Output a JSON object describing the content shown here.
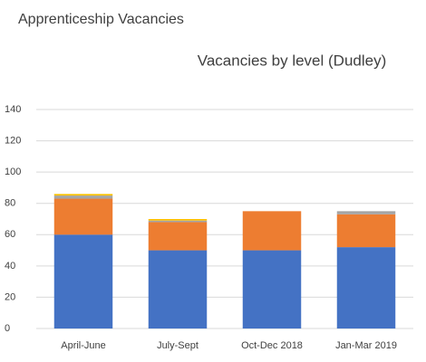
{
  "header": {
    "title": "Apprenticeship Vacancies"
  },
  "chart_data": {
    "type": "bar",
    "stacked": true,
    "title": "Vacancies by level (Dudley)",
    "categories": [
      "April-June",
      "July-Sept",
      "Oct-Dec 2018",
      "Jan-Mar 2019"
    ],
    "series": [
      {
        "color": "#4472c4",
        "values": [
          60,
          50,
          50,
          52
        ]
      },
      {
        "color": "#ed7d31",
        "values": [
          23,
          18,
          25,
          21
        ]
      },
      {
        "color": "#a5a5a5",
        "values": [
          2,
          1,
          0,
          2
        ]
      },
      {
        "color": "#ffc000",
        "values": [
          1,
          1,
          0,
          0
        ]
      }
    ],
    "ylim": [
      0,
      140
    ],
    "yticks": [
      0,
      20,
      40,
      60,
      80,
      100,
      120,
      140
    ],
    "grid": true
  }
}
